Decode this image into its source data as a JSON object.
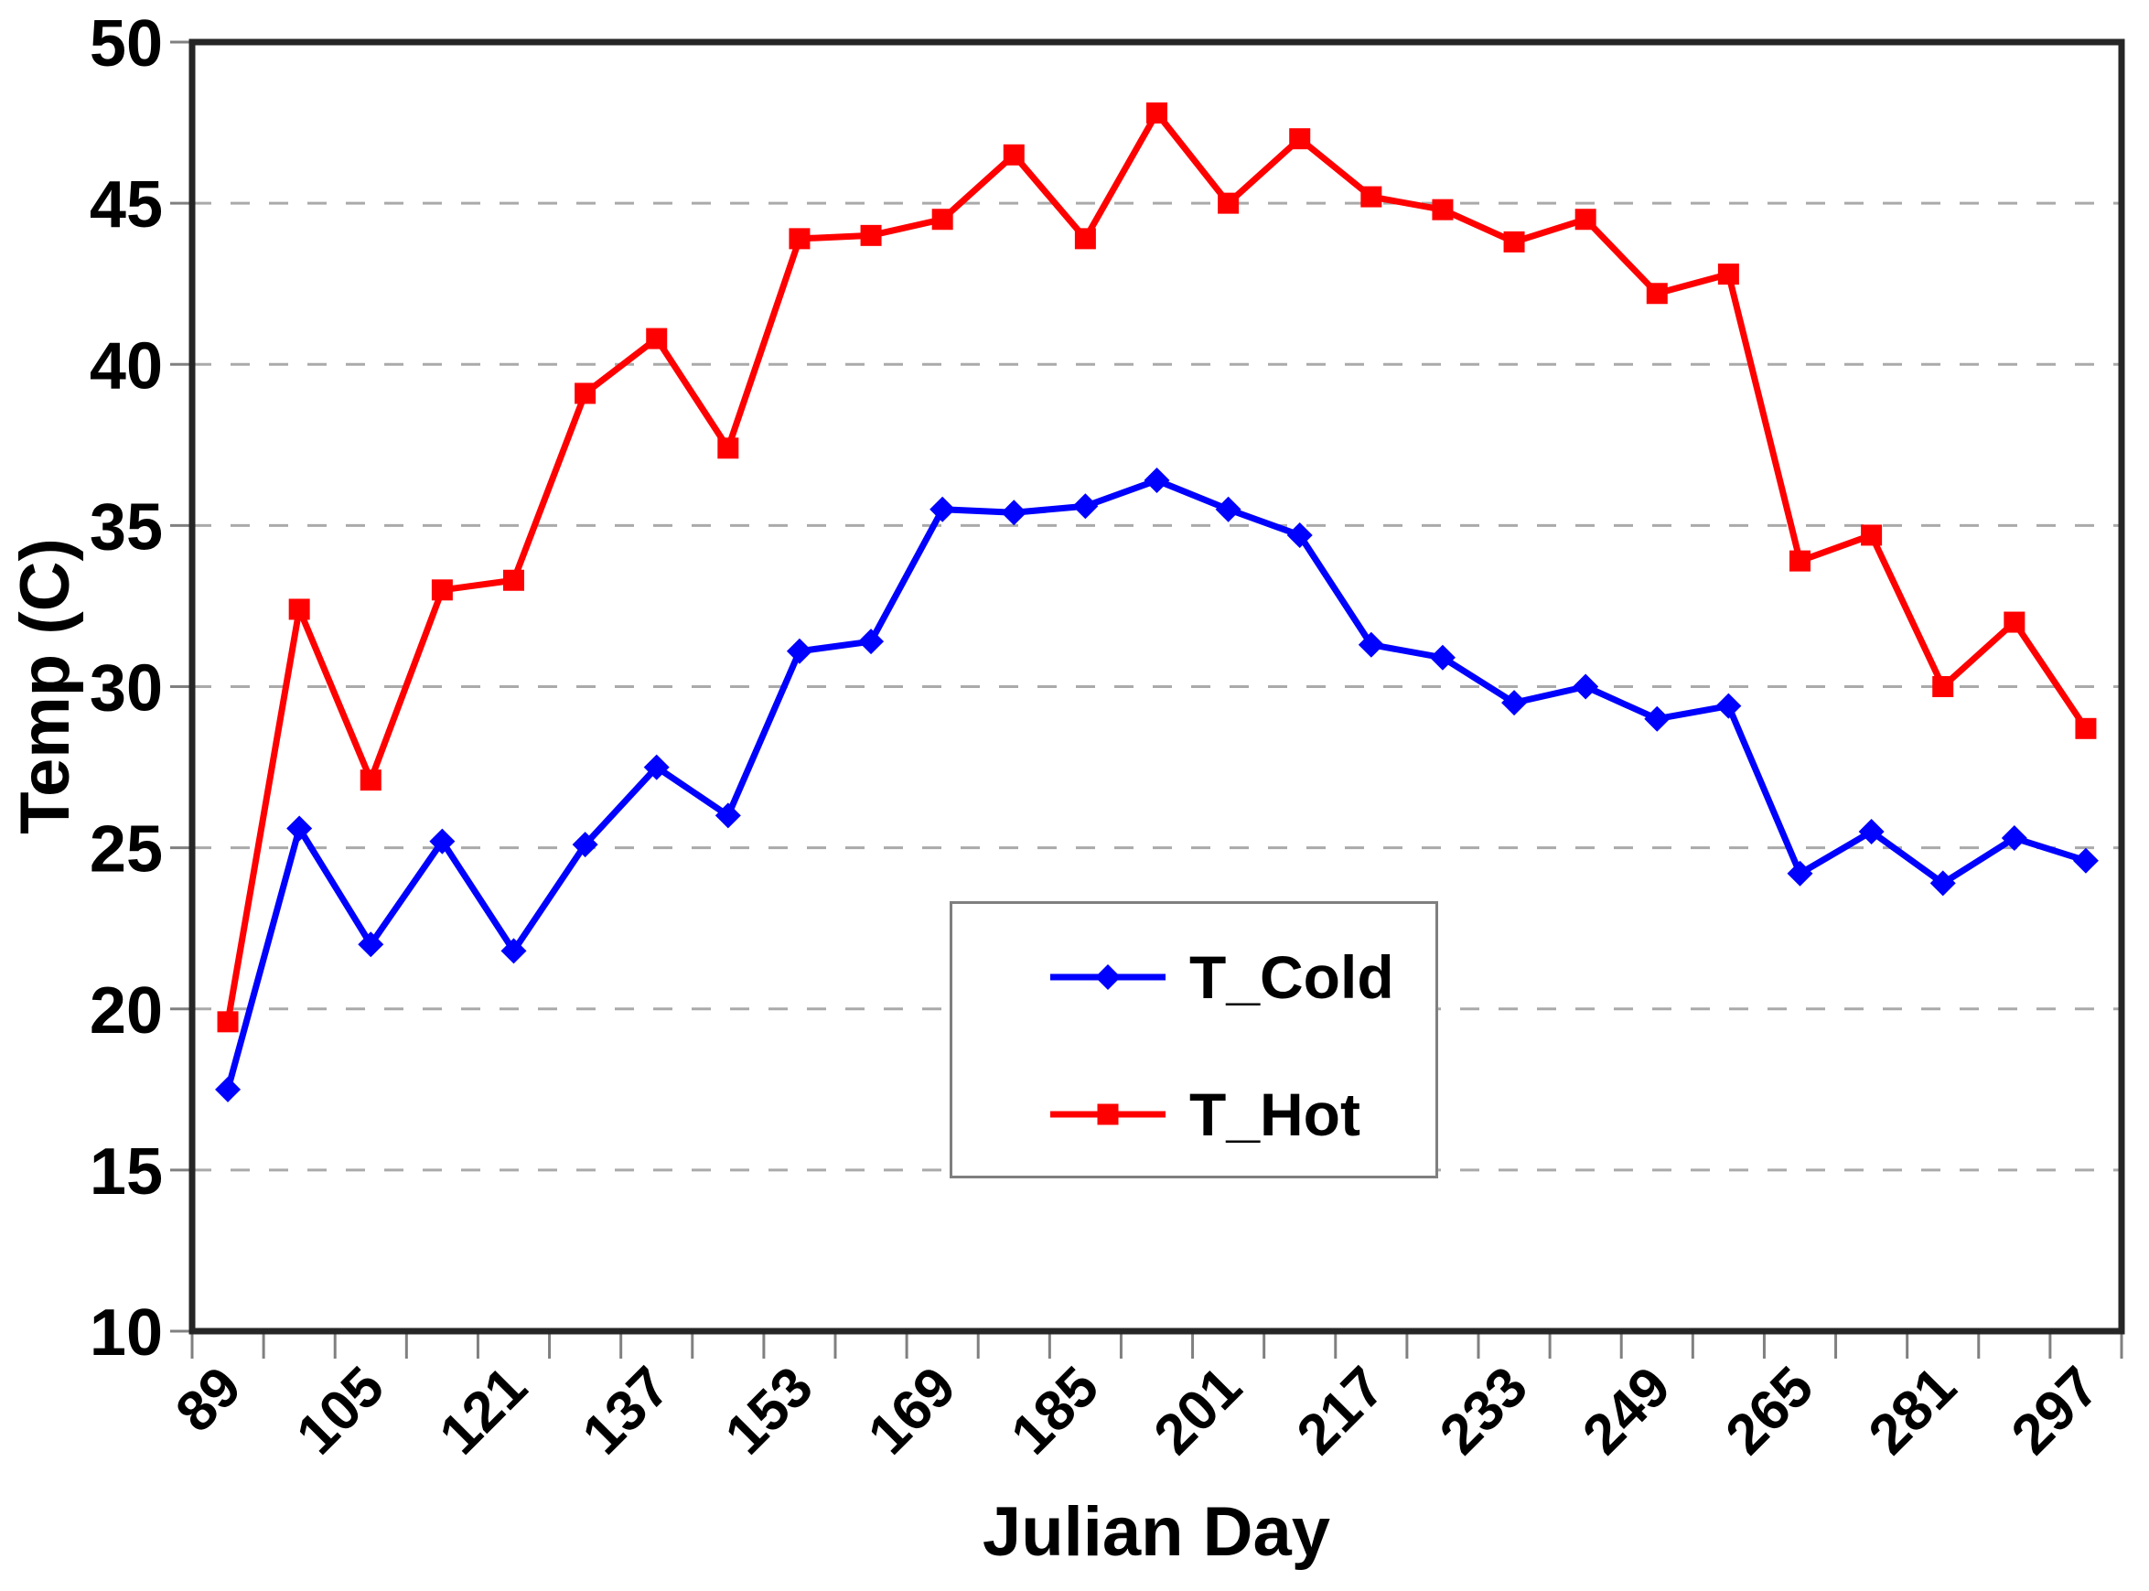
{
  "chart_data": {
    "type": "line",
    "title": "",
    "xlabel": "Julian Day",
    "ylabel": "Temp (C)",
    "x": [
      89,
      97,
      105,
      113,
      121,
      129,
      137,
      145,
      153,
      161,
      169,
      177,
      185,
      193,
      201,
      209,
      217,
      225,
      233,
      241,
      249,
      257,
      265,
      273,
      281,
      289,
      297
    ],
    "x_tick_labels": [
      "89",
      "105",
      "121",
      "137",
      "153",
      "169",
      "185",
      "201",
      "217",
      "233",
      "249",
      "265",
      "281",
      "297"
    ],
    "ylim": [
      10,
      50
    ],
    "yticks": [
      10,
      15,
      20,
      25,
      30,
      35,
      40,
      45,
      50
    ],
    "grid": "horizontal-dashed",
    "legend_position": "inside-lower-center",
    "series": [
      {
        "name": "T_Cold",
        "color": "#0000FF",
        "marker": "diamond",
        "values": [
          17.5,
          25.6,
          22.0,
          25.2,
          21.8,
          25.1,
          27.5,
          26.0,
          31.1,
          31.4,
          35.5,
          35.4,
          35.6,
          36.4,
          35.5,
          34.7,
          31.3,
          30.9,
          29.5,
          30.0,
          29.0,
          29.4,
          24.2,
          25.5,
          23.9,
          25.3,
          24.6
        ]
      },
      {
        "name": "T_Hot",
        "color": "#FF0000",
        "marker": "square",
        "values": [
          19.6,
          32.4,
          27.1,
          33.0,
          33.3,
          39.1,
          40.8,
          37.4,
          43.9,
          44.0,
          44.5,
          46.5,
          43.9,
          47.8,
          45.0,
          47.0,
          45.2,
          44.8,
          43.8,
          44.5,
          42.2,
          42.8,
          33.9,
          34.7,
          30.0,
          32.0,
          28.7
        ]
      }
    ],
    "axis_color": "#262626",
    "gridline_color": "#aaaaaa",
    "tick_color": "#808080",
    "text_color": "#000000"
  }
}
